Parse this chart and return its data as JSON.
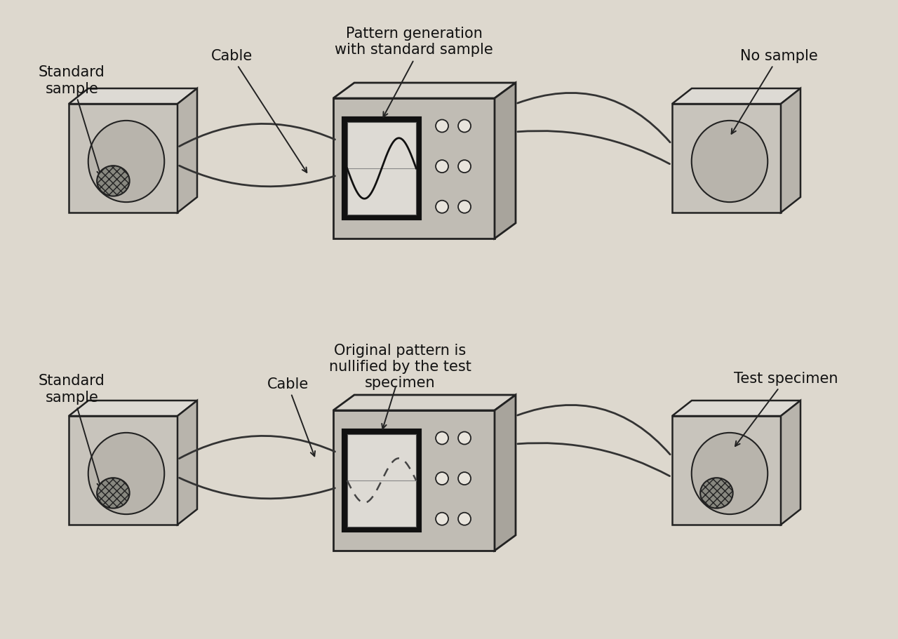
{
  "bg_color": "#ddd8ce",
  "box_face": "#c8c4bc",
  "box_top": "#dddad4",
  "box_right": "#b8b4ac",
  "osc_face": "#c0bcb4",
  "osc_top": "#d8d4cc",
  "osc_right": "#a8a49c",
  "screen_border": "#111111",
  "screen_inner": "#dddad4",
  "knob_face": "#c8c4bc",
  "line_color": "#222222",
  "cable_color": "#333333",
  "label_color": "#111111",
  "title1": "Pattern generation\nwith standard sample",
  "title2": "Original pattern is\nnullified by the test\nspecimen",
  "label_standard_sample": "Standard\nsample",
  "label_cable": "Cable",
  "label_no_sample": "No sample",
  "label_test_specimen": "Test specimen"
}
